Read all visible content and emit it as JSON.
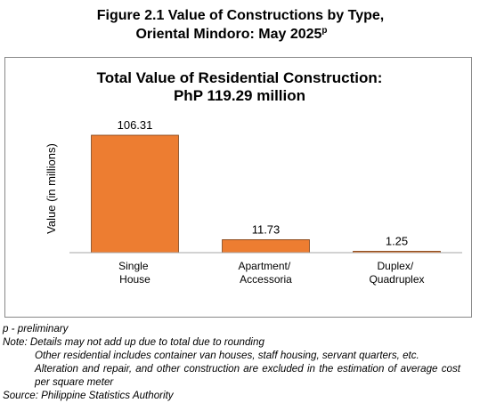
{
  "chart_data": {
    "type": "bar",
    "title": [
      "Figure 2.1 Value of Constructions by Type,",
      "Oriental Mindoro: May 2025"
    ],
    "title_superscript": "p",
    "subtitle": [
      "Total Value of Residential Construction:",
      "PhP 119.29 million"
    ],
    "y_label": "Value (in millions)",
    "categories": [
      "Single House",
      "Apartment/ Accessoria",
      "Duplex/ Quadruplex"
    ],
    "values": [
      106.31,
      11.73,
      1.25
    ],
    "color": "#ed7d31",
    "ylim": [
      0,
      120
    ],
    "notes": [
      "p - preliminary",
      "Note: Details may not add up due to total due to rounding",
      "Other residential includes container van houses, staff housing, servant quarters, etc.",
      "Alteration and repair, and other construction are excluded in the estimation of average cost per square meter",
      "Source: Philippine Statistics Authority"
    ]
  }
}
